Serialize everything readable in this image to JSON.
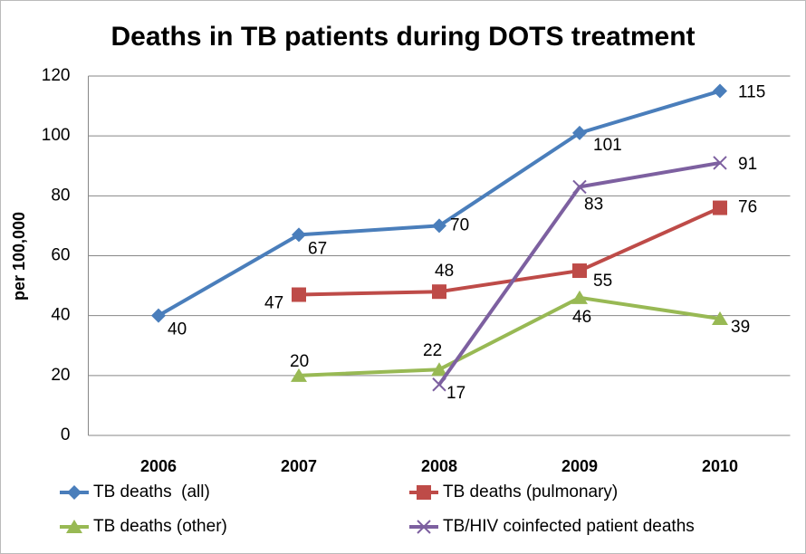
{
  "chart_data": {
    "type": "line",
    "title": "Deaths in TB patients during DOTS treatment",
    "y_label": "per 100,000",
    "categories": [
      "2006",
      "2007",
      "2008",
      "2009",
      "2010"
    ],
    "series": [
      {
        "name": "TB deaths  (all)",
        "color": "#4a7ebb",
        "marker": "diamond",
        "values": [
          40,
          67,
          70,
          101,
          115
        ]
      },
      {
        "name": "TB deaths (pulmonary)",
        "color": "#be4b48",
        "marker": "square",
        "values": [
          null,
          47,
          48,
          55,
          76
        ]
      },
      {
        "name": "TB deaths (other)",
        "color": "#98b954",
        "marker": "triangle",
        "values": [
          null,
          20,
          22,
          46,
          39
        ]
      },
      {
        "name": "TB/HIV coinfected patient deaths",
        "color": "#7d60a0",
        "marker": "x",
        "values": [
          null,
          null,
          17,
          83,
          91
        ]
      }
    ],
    "ylim": [
      0,
      120
    ],
    "yticks": [
      0,
      20,
      40,
      60,
      80,
      100,
      120
    ],
    "grid": true,
    "legend": "bottom"
  }
}
